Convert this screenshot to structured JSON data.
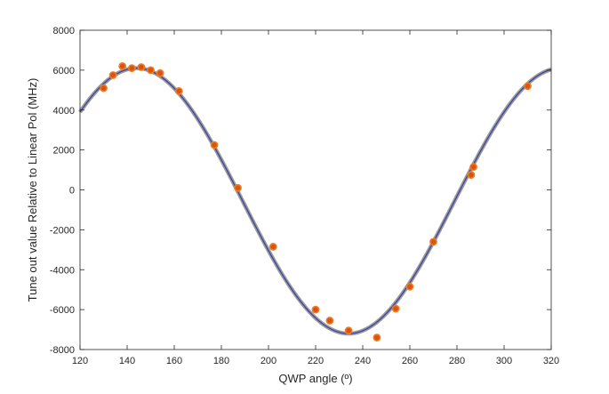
{
  "chart_data": {
    "type": "scatter",
    "title": "",
    "xlabel": "QWP angle (º)",
    "ylabel": "Tune out value Relative to Linear Pol (MHz)",
    "xlim": [
      120,
      320
    ],
    "ylim": [
      -8000,
      8000
    ],
    "xticks": [
      120,
      140,
      160,
      180,
      200,
      220,
      240,
      260,
      280,
      300,
      320
    ],
    "yticks": [
      -8000,
      -6000,
      -4000,
      -2000,
      0,
      2000,
      4000,
      6000,
      8000
    ],
    "grid": false,
    "legend": "none",
    "series": [
      {
        "type": "scatter",
        "color": "#D95319",
        "edge_color": "#EE7D1E",
        "x": [
          130,
          134,
          138,
          142,
          146,
          150,
          154,
          162,
          177,
          187,
          202,
          220,
          226,
          234,
          246,
          254,
          260,
          270,
          286,
          287,
          310
        ],
        "y": [
          5100,
          5750,
          6200,
          6100,
          6150,
          6000,
          5850,
          4950,
          2250,
          100,
          -2850,
          -6000,
          -6550,
          -7050,
          -7400,
          -5950,
          -4850,
          -2600,
          750,
          1150,
          5200
        ]
      },
      {
        "type": "line",
        "model": "offset + amplitude * cos(2 * (x - peak_x))",
        "offset": -550,
        "amplitude": 6650,
        "peak_x": 144,
        "color": "#3A3FA8",
        "halo_color": "#9A9A9A",
        "x_range": [
          120,
          320
        ]
      }
    ]
  }
}
